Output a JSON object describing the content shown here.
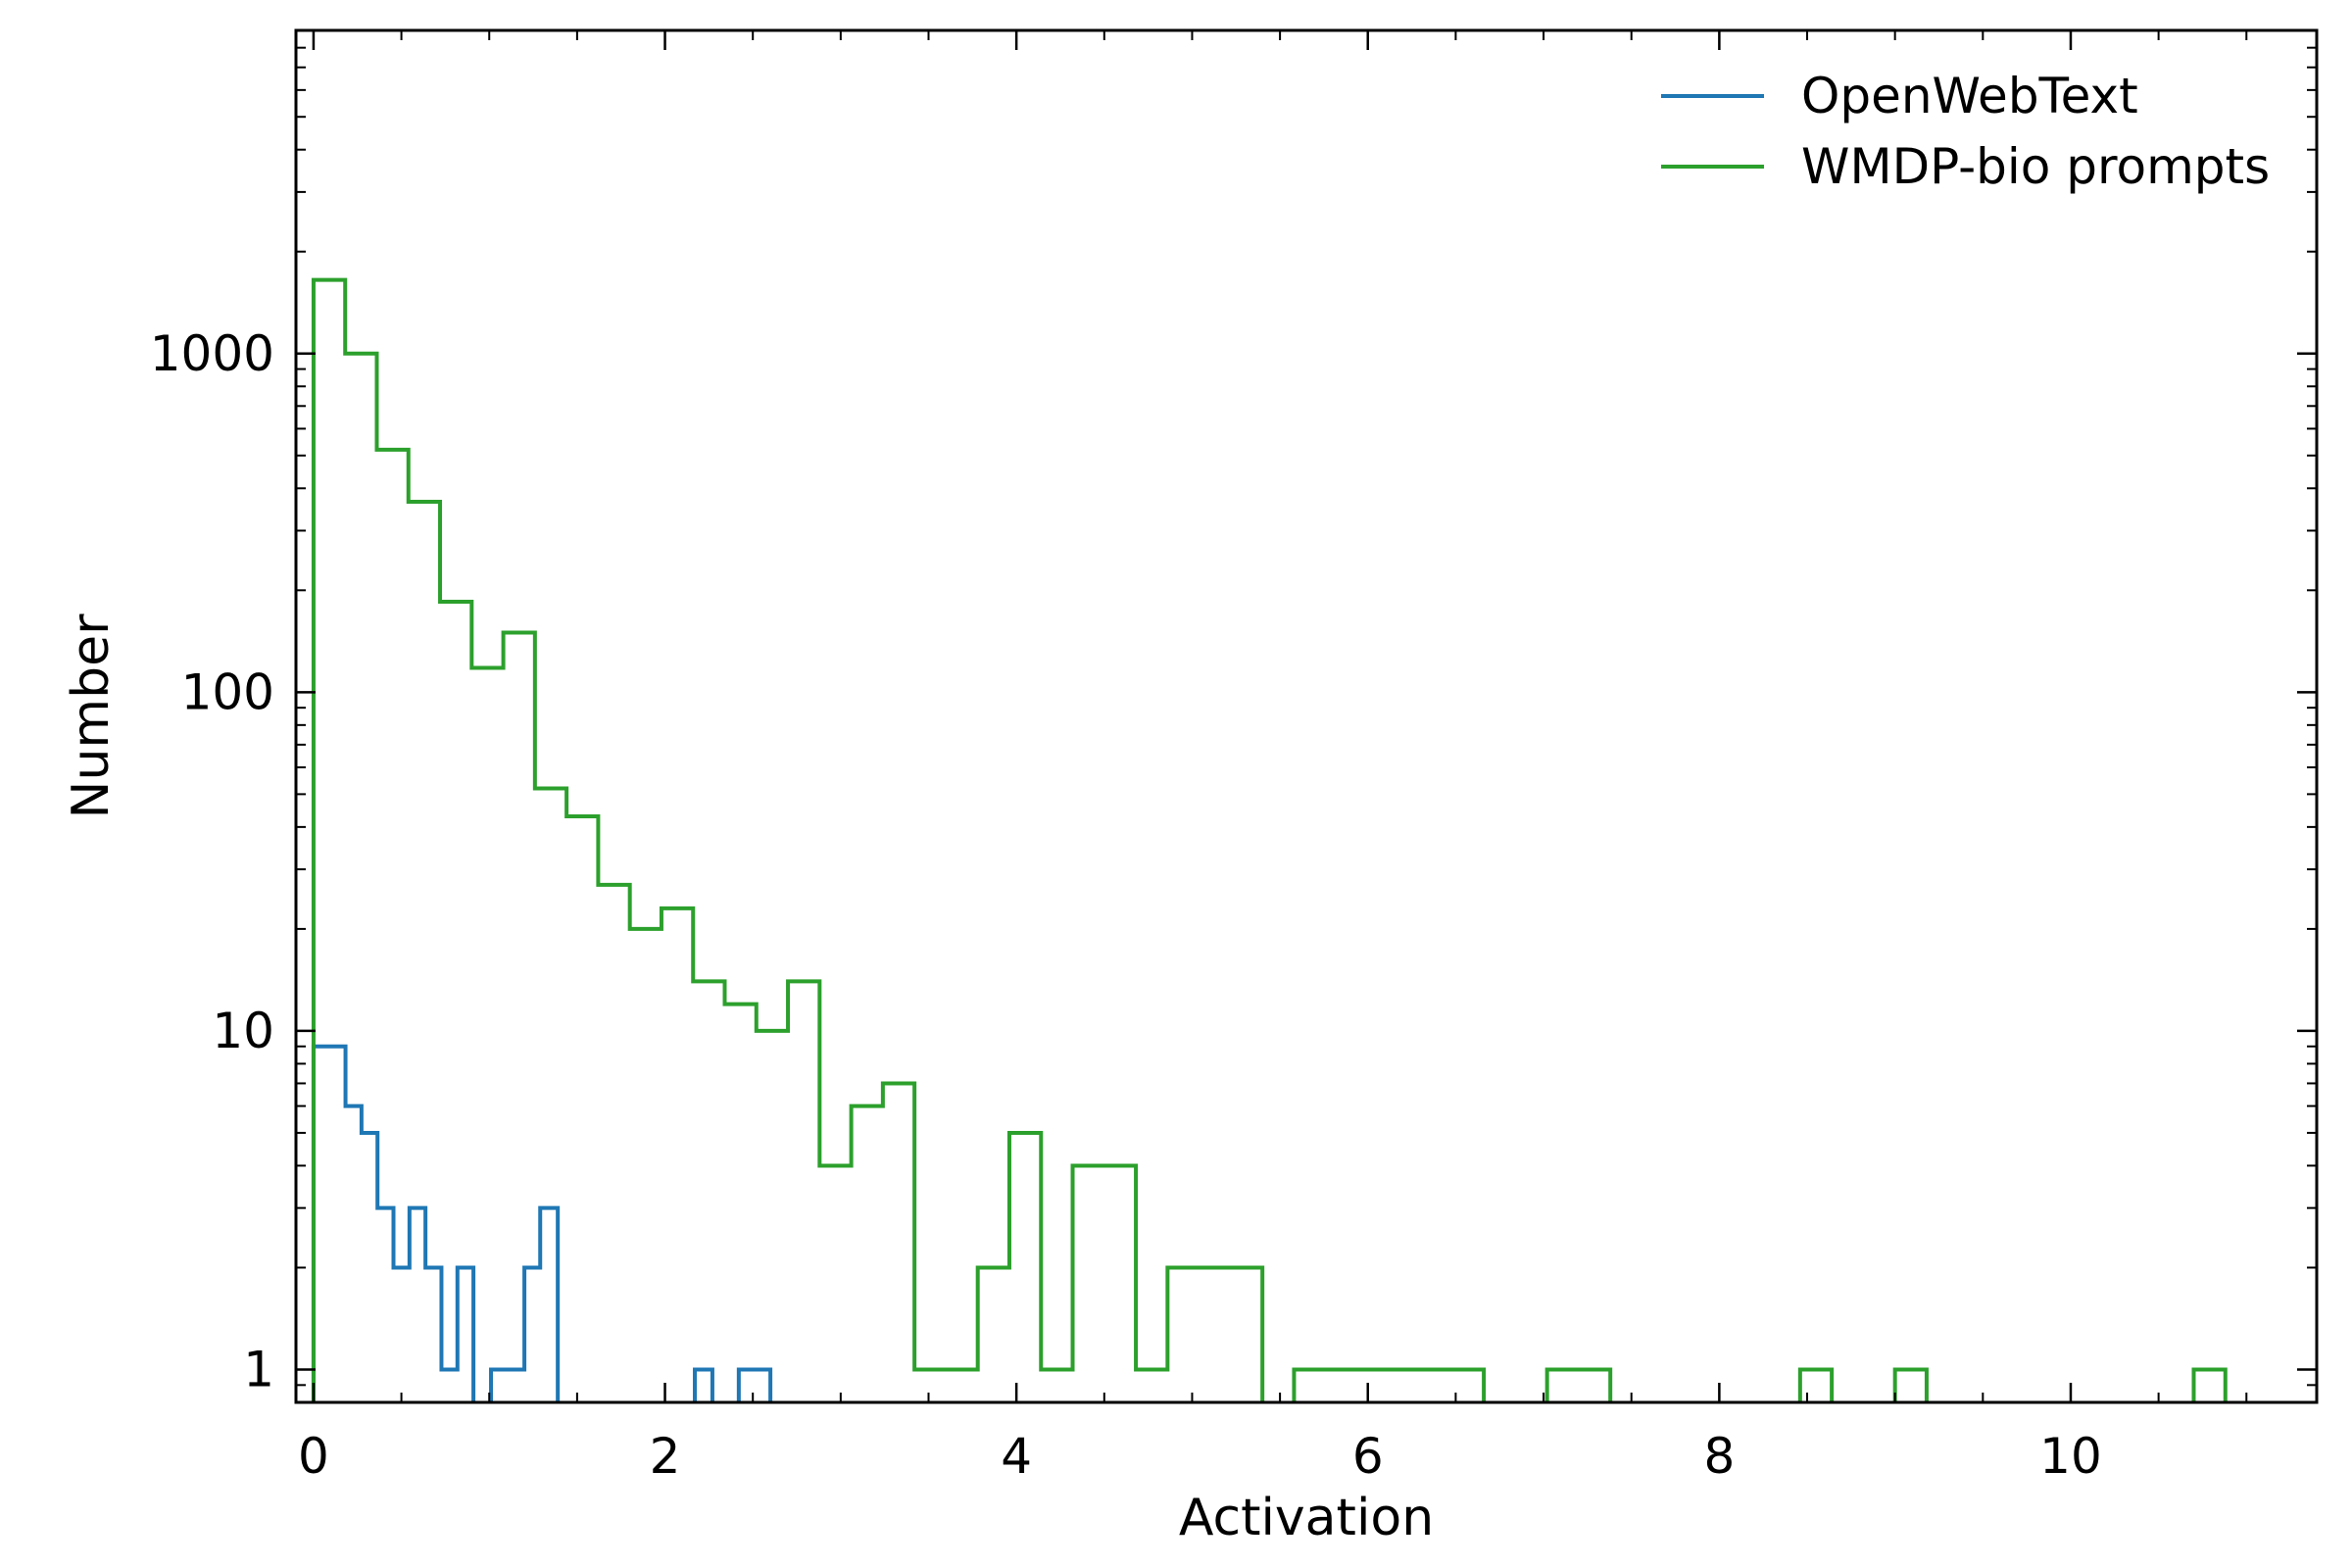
{
  "chart_data": {
    "type": "line",
    "style": "step-histogram",
    "xlabel": "Activation",
    "ylabel": "Number",
    "xlim": [
      -0.1,
      11.4
    ],
    "ylim": [
      0.8,
      9000
    ],
    "yscale": "log",
    "grid": false,
    "legend_position": "top-right",
    "x_ticks": [
      0,
      2,
      4,
      6,
      8,
      10
    ],
    "x_tick_labels": [
      "0",
      "2",
      "4",
      "6",
      "8",
      "10"
    ],
    "y_ticks": [
      1,
      10,
      100,
      1000
    ],
    "y_tick_labels": [
      "1",
      "10",
      "100",
      "1000"
    ],
    "series": [
      {
        "name": "OpenWebText",
        "color": "#1f77b4",
        "bin_width": 0.182,
        "bins": [
          {
            "x0": 0.0,
            "y": 9
          },
          {
            "x0": 0.182,
            "y": 6
          },
          {
            "x0": 0.273,
            "y": 5
          },
          {
            "x0": 0.364,
            "y": 3
          },
          {
            "x0": 0.455,
            "y": 2
          },
          {
            "x0": 0.546,
            "y": 3
          },
          {
            "x0": 0.637,
            "y": 2
          },
          {
            "x0": 0.728,
            "y": 1
          },
          {
            "x0": 0.819,
            "y": 2
          },
          {
            "x0": 0.91,
            "y": 0
          },
          {
            "x0": 1.01,
            "y": 1
          },
          {
            "x0": 1.2,
            "y": 2
          },
          {
            "x0": 1.29,
            "y": 3
          },
          {
            "x0": 1.39,
            "y": 0
          },
          {
            "x0": 2.17,
            "y": 1
          },
          {
            "x0": 2.27,
            "y": 0
          },
          {
            "x0": 2.42,
            "y": 1
          },
          {
            "x0": 2.6,
            "y": 0
          }
        ]
      },
      {
        "name": "WMDP-bio prompts",
        "color": "#2ca02c",
        "bin_width": 0.182,
        "bins": [
          {
            "x0": 0.0,
            "y": 1650
          },
          {
            "x0": 0.18,
            "y": 1000
          },
          {
            "x0": 0.36,
            "y": 520
          },
          {
            "x0": 0.54,
            "y": 365
          },
          {
            "x0": 0.72,
            "y": 185
          },
          {
            "x0": 0.9,
            "y": 118
          },
          {
            "x0": 1.08,
            "y": 150
          },
          {
            "x0": 1.26,
            "y": 52
          },
          {
            "x0": 1.44,
            "y": 43
          },
          {
            "x0": 1.62,
            "y": 27
          },
          {
            "x0": 1.8,
            "y": 20
          },
          {
            "x0": 1.98,
            "y": 23
          },
          {
            "x0": 2.16,
            "y": 14
          },
          {
            "x0": 2.34,
            "y": 12
          },
          {
            "x0": 2.52,
            "y": 10
          },
          {
            "x0": 2.7,
            "y": 14
          },
          {
            "x0": 2.88,
            "y": 4
          },
          {
            "x0": 3.06,
            "y": 6
          },
          {
            "x0": 3.24,
            "y": 7
          },
          {
            "x0": 3.42,
            "y": 1
          },
          {
            "x0": 3.78,
            "y": 2
          },
          {
            "x0": 3.96,
            "y": 5
          },
          {
            "x0": 4.14,
            "y": 1
          },
          {
            "x0": 4.32,
            "y": 4
          },
          {
            "x0": 4.68,
            "y": 1
          },
          {
            "x0": 4.86,
            "y": 2
          },
          {
            "x0": 5.4,
            "y": 0
          },
          {
            "x0": 5.58,
            "y": 1
          },
          {
            "x0": 6.66,
            "y": 0
          },
          {
            "x0": 7.02,
            "y": 1
          },
          {
            "x0": 7.38,
            "y": 0
          },
          {
            "x0": 8.46,
            "y": 1
          },
          {
            "x0": 8.64,
            "y": 0
          },
          {
            "x0": 9.0,
            "y": 1
          },
          {
            "x0": 9.18,
            "y": 0
          },
          {
            "x0": 10.7,
            "y": 1
          },
          {
            "x0": 10.88,
            "y": 0
          }
        ]
      }
    ]
  }
}
